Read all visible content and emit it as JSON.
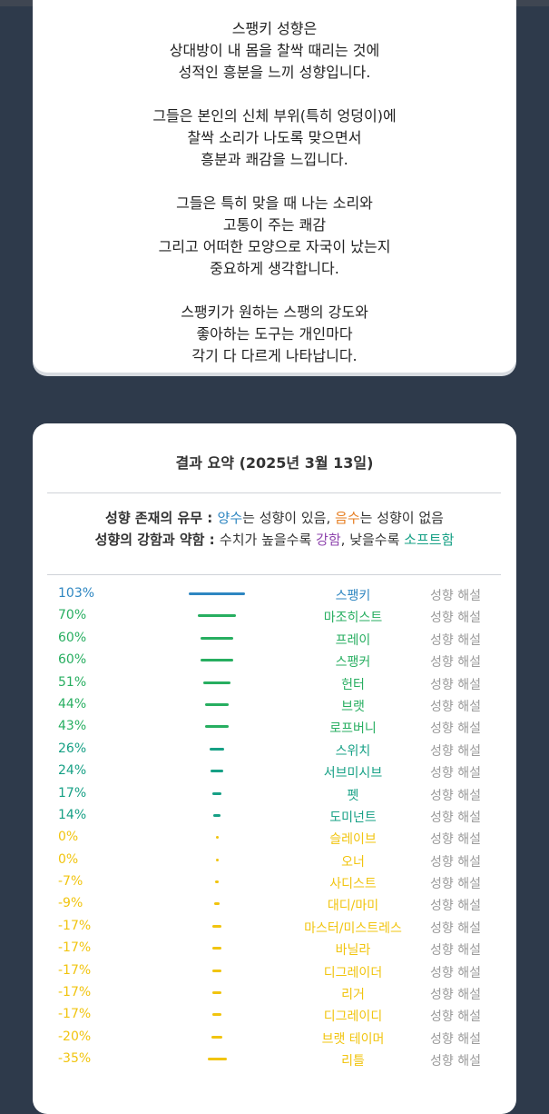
{
  "intro": {
    "paragraphs": [
      [
        "스팽키 성향은",
        "상대방이 내 몸을 찰싹 때리는 것에",
        "성적인 흥분을 느끼 성향입니다."
      ],
      [
        "그들은 본인의 신체 부위(특히 엉덩이)에",
        "찰싹 소리가 나도록 맞으면서",
        "흥분과 쾌감을 느낍니다."
      ],
      [
        "그들은 특히 맞을 때 나는 소리와",
        "고통이 주는 쾌감",
        "그리고 어떠한 모양으로 자국이 났는지",
        "중요하게 생각합니다."
      ],
      [
        "스팽키가 원하는 스팽의 강도와",
        "좋아하는 도구는 개인마다",
        "각기 다 다르게 나타납니다."
      ]
    ]
  },
  "summary": {
    "title": "결과 요약 (2025년 3월 13일)",
    "legend": {
      "line1_key": "성향 존재의 유무 : ",
      "positive_word": "양수",
      "line1_mid": "는 성향이 있음, ",
      "negative_word": "음수",
      "line1_end": "는 성향이 없음",
      "line2_key": "성향의 강함과 약함 : ",
      "line2_mid": "수치가 높을수록 ",
      "strong_word": "강함",
      "line2_mid2": ", 낮을수록 ",
      "soft_word": "소프트함"
    },
    "colors": {
      "blue": "#2e86c1",
      "green": "#27ae60",
      "teal": "#16a085",
      "yellow": "#f1c40f",
      "purple": "#8e44ad"
    },
    "desc_label": "성향 해설",
    "rows": [
      {
        "pct": "103%",
        "value": 103,
        "name": "스팽키",
        "color": "#2e86c1"
      },
      {
        "pct": "70%",
        "value": 70,
        "name": "마조히스트",
        "color": "#27ae60"
      },
      {
        "pct": "60%",
        "value": 60,
        "name": "프레이",
        "color": "#27ae60"
      },
      {
        "pct": "60%",
        "value": 60,
        "name": "스팽커",
        "color": "#27ae60"
      },
      {
        "pct": "51%",
        "value": 51,
        "name": "헌터",
        "color": "#27ae60"
      },
      {
        "pct": "44%",
        "value": 44,
        "name": "브랫",
        "color": "#27ae60"
      },
      {
        "pct": "43%",
        "value": 43,
        "name": "로프버니",
        "color": "#27ae60"
      },
      {
        "pct": "26%",
        "value": 26,
        "name": "스위치",
        "color": "#16a085"
      },
      {
        "pct": "24%",
        "value": 24,
        "name": "서브미시브",
        "color": "#16a085"
      },
      {
        "pct": "17%",
        "value": 17,
        "name": "펫",
        "color": "#16a085"
      },
      {
        "pct": "14%",
        "value": 14,
        "name": "도미넌트",
        "color": "#16a085"
      },
      {
        "pct": "0%",
        "value": 0,
        "name": "슬레이브",
        "color": "#f1c40f"
      },
      {
        "pct": "0%",
        "value": 0,
        "name": "오너",
        "color": "#f1c40f"
      },
      {
        "pct": "-7%",
        "value": -7,
        "name": "사디스트",
        "color": "#f1c40f"
      },
      {
        "pct": "-9%",
        "value": -9,
        "name": "대디/마미",
        "color": "#f1c40f"
      },
      {
        "pct": "-17%",
        "value": -17,
        "name": "마스터/미스트레스",
        "color": "#f1c40f"
      },
      {
        "pct": "-17%",
        "value": -17,
        "name": "바닐라",
        "color": "#f1c40f"
      },
      {
        "pct": "-17%",
        "value": -17,
        "name": "디그레이더",
        "color": "#f1c40f"
      },
      {
        "pct": "-17%",
        "value": -17,
        "name": "리거",
        "color": "#f1c40f"
      },
      {
        "pct": "-17%",
        "value": -17,
        "name": "디그레이디",
        "color": "#f1c40f"
      },
      {
        "pct": "-20%",
        "value": -20,
        "name": "브랫 테이머",
        "color": "#f1c40f"
      },
      {
        "pct": "-35%",
        "value": -35,
        "name": "리틀",
        "color": "#f1c40f"
      }
    ]
  }
}
